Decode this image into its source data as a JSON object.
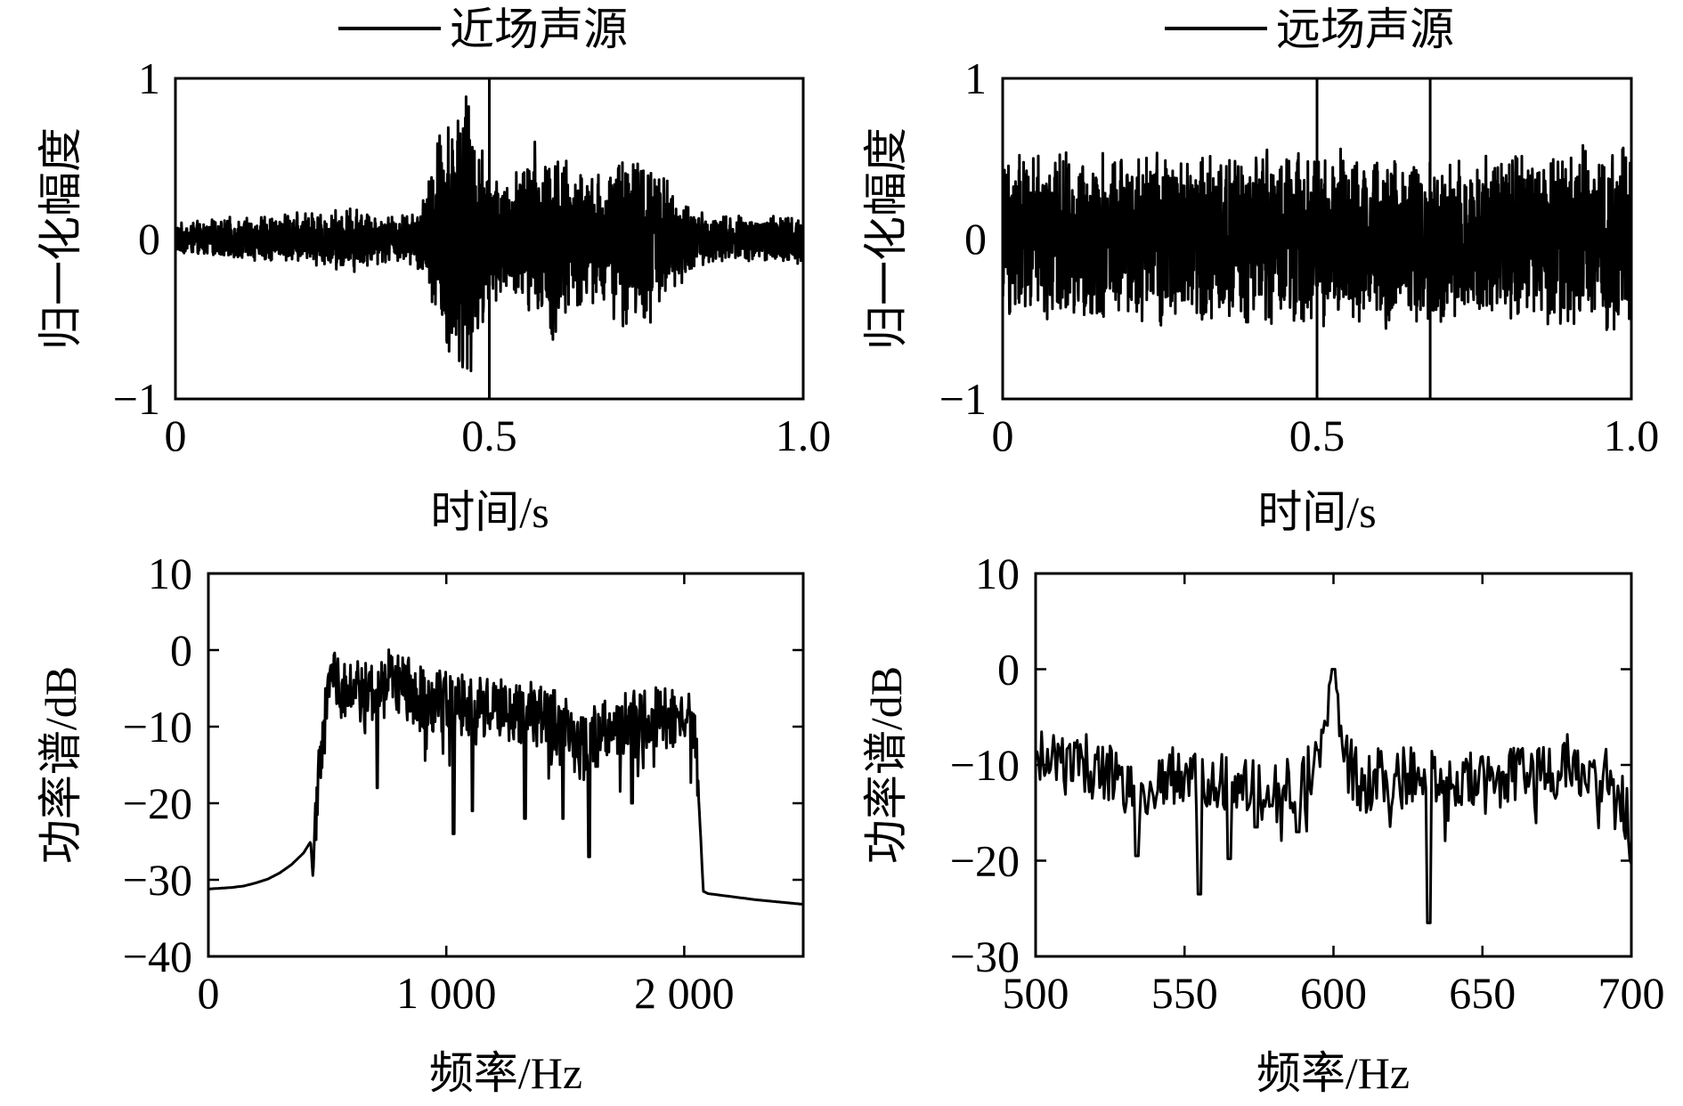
{
  "chart_data": [
    {
      "id": "near-time",
      "type": "line",
      "legend": "近场声源",
      "xlabel": "时间/s",
      "ylabel": "归一化幅度",
      "xlim": [
        0,
        1.0
      ],
      "ylim": [
        -1,
        1
      ],
      "xticks": [
        0,
        0.5,
        1.0
      ],
      "xtick_labels": [
        "0",
        "0.5",
        "1.0"
      ],
      "yticks": [
        -1,
        0,
        1
      ],
      "ytick_labels": [
        "−1",
        "0",
        "1"
      ],
      "markers": [
        0.5
      ],
      "grid": false,
      "series": [
        {
          "kind": "noise-envelope",
          "points": [
            [
              0,
              0.1
            ],
            [
              0.1,
              0.14
            ],
            [
              0.2,
              0.17
            ],
            [
              0.29,
              0.22
            ],
            [
              0.33,
              0.16
            ],
            [
              0.38,
              0.17
            ],
            [
              0.4,
              0.35
            ],
            [
              0.43,
              0.95
            ],
            [
              0.46,
              0.97
            ],
            [
              0.48,
              0.75
            ],
            [
              0.5,
              0.55
            ],
            [
              0.53,
              0.42
            ],
            [
              0.57,
              0.65
            ],
            [
              0.6,
              0.7
            ],
            [
              0.63,
              0.5
            ],
            [
              0.66,
              0.42
            ],
            [
              0.7,
              0.55
            ],
            [
              0.73,
              0.62
            ],
            [
              0.76,
              0.55
            ],
            [
              0.79,
              0.35
            ],
            [
              0.83,
              0.18
            ],
            [
              0.9,
              0.15
            ],
            [
              1.0,
              0.17
            ]
          ]
        }
      ]
    },
    {
      "id": "far-time",
      "type": "line",
      "legend": "远场声源",
      "xlabel": "时间/s",
      "ylabel": "归一化幅度",
      "xlim": [
        0,
        1.0
      ],
      "ylim": [
        -1,
        1
      ],
      "xticks": [
        0,
        0.5,
        1.0
      ],
      "xtick_labels": [
        "0",
        "0.5",
        "1.0"
      ],
      "yticks": [
        -1,
        0,
        1
      ],
      "ytick_labels": [
        "−1",
        "0",
        "1"
      ],
      "markers": [
        0.5,
        0.68
      ],
      "grid": false,
      "series": [
        {
          "kind": "noise-envelope",
          "points": [
            [
              0,
              0.55
            ],
            [
              0.25,
              0.58
            ],
            [
              0.5,
              0.6
            ],
            [
              0.75,
              0.58
            ],
            [
              1.0,
              0.6
            ]
          ]
        }
      ]
    },
    {
      "id": "near-spectrum",
      "type": "line",
      "xlabel": "频率/Hz",
      "ylabel": "功率谱/dB",
      "xlim": [
        0,
        2500
      ],
      "ylim": [
        -40,
        10
      ],
      "xticks": [
        0,
        1000,
        2000
      ],
      "xtick_labels": [
        "0",
        "1 000",
        "2 000"
      ],
      "yticks": [
        -40,
        -30,
        -20,
        -10,
        0,
        10
      ],
      "ytick_labels": [
        "−40",
        "−30",
        "−20",
        "−10",
        "0",
        "10"
      ],
      "grid": false,
      "series": [
        {
          "kind": "spectrum",
          "points": [
            [
              0,
              -31.2
            ],
            [
              50,
              -31.1
            ],
            [
              100,
              -31
            ],
            [
              150,
              -30.8
            ],
            [
              200,
              -30.4
            ],
            [
              250,
              -29.9
            ],
            [
              300,
              -29.1
            ],
            [
              350,
              -28
            ],
            [
              400,
              -26.5
            ],
            [
              430,
              -25
            ],
            [
              440,
              -30
            ],
            [
              450,
              -20
            ],
            [
              470,
              -14
            ],
            [
              500,
              -7
            ],
            [
              530,
              -3
            ],
            [
              550,
              -6
            ],
            [
              600,
              -5
            ],
            [
              650,
              -6
            ],
            [
              700,
              -5
            ],
            [
              750,
              -4
            ],
            [
              800,
              -4.5
            ],
            [
              900,
              -6
            ],
            [
              1000,
              -7
            ],
            [
              1100,
              -7.5
            ],
            [
              1200,
              -7.5
            ],
            [
              1300,
              -8
            ],
            [
              1400,
              -8.5
            ],
            [
              1500,
              -10
            ],
            [
              1550,
              -11
            ],
            [
              1600,
              -12
            ],
            [
              1650,
              -11
            ],
            [
              1700,
              -10
            ],
            [
              1800,
              -9
            ],
            [
              1900,
              -9
            ],
            [
              2000,
              -9
            ],
            [
              2030,
              -9.5
            ],
            [
              2050,
              -13
            ],
            [
              2070,
              -25
            ],
            [
              2080,
              -31.5
            ],
            [
              2100,
              -31.8
            ],
            [
              2200,
              -32.2
            ],
            [
              2300,
              -32.6
            ],
            [
              2400,
              -32.9
            ],
            [
              2500,
              -33.2
            ]
          ],
          "dips": [
            [
              1030,
              -24
            ],
            [
              1600,
              -27
            ],
            [
              1330,
              -22
            ],
            [
              1780,
              -20
            ],
            [
              1110,
              -21
            ],
            [
              710,
              -18
            ],
            [
              1490,
              -22
            ]
          ]
        }
      ]
    },
    {
      "id": "far-spectrum",
      "type": "line",
      "xlabel": "频率/Hz",
      "ylabel": "功率谱/dB",
      "xlim": [
        500,
        700
      ],
      "ylim": [
        -30,
        10
      ],
      "xticks": [
        500,
        550,
        600,
        650,
        700
      ],
      "xtick_labels": [
        "500",
        "550",
        "600",
        "650",
        "700"
      ],
      "yticks": [
        -30,
        -20,
        -10,
        0,
        10
      ],
      "ytick_labels": [
        "−30",
        "−20",
        "−10",
        "0",
        "10"
      ],
      "grid": false,
      "series": [
        {
          "kind": "spectrum",
          "points": [
            [
              500,
              -10
            ],
            [
              505,
              -8
            ],
            [
              510,
              -10
            ],
            [
              515,
              -9
            ],
            [
              520,
              -11
            ],
            [
              525,
              -10
            ],
            [
              530,
              -12
            ],
            [
              535,
              -13
            ],
            [
              540,
              -12
            ],
            [
              545,
              -11
            ],
            [
              550,
              -12
            ],
            [
              555,
              -12
            ],
            [
              560,
              -12.5
            ],
            [
              565,
              -11
            ],
            [
              570,
              -12
            ],
            [
              575,
              -12
            ],
            [
              580,
              -13
            ],
            [
              585,
              -12
            ],
            [
              590,
              -12
            ],
            [
              595,
              -9
            ],
            [
              598,
              -3
            ],
            [
              600,
              0
            ],
            [
              602,
              -4
            ],
            [
              605,
              -10
            ],
            [
              610,
              -12
            ],
            [
              615,
              -11
            ],
            [
              620,
              -12
            ],
            [
              625,
              -11
            ],
            [
              630,
              -12
            ],
            [
              635,
              -11
            ],
            [
              640,
              -12
            ],
            [
              645,
              -11
            ],
            [
              650,
              -12
            ],
            [
              655,
              -12
            ],
            [
              660,
              -11
            ],
            [
              665,
              -11
            ],
            [
              670,
              -11
            ],
            [
              675,
              -11
            ],
            [
              680,
              -9
            ],
            [
              685,
              -12
            ],
            [
              690,
              -11
            ],
            [
              695,
              -12
            ],
            [
              700,
              -17
            ]
          ],
          "dips": [
            [
              555,
              -23.5
            ],
            [
              632,
              -26.5
            ],
            [
              534,
              -19.5
            ],
            [
              565,
              -19.8
            ],
            [
              700,
              -19.9
            ],
            [
              588,
              -17
            ],
            [
              574,
              -16.5
            ]
          ]
        }
      ]
    }
  ]
}
